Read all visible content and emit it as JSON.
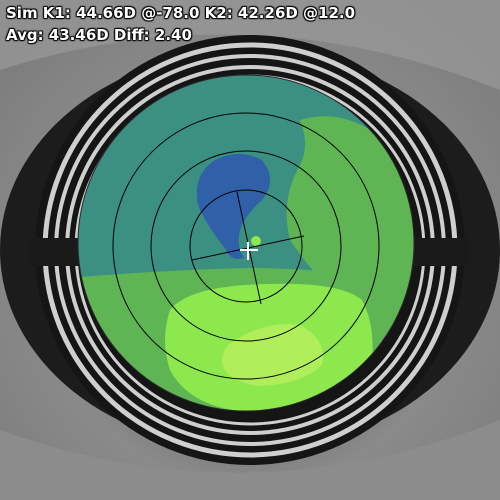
{
  "readout": {
    "line1": "Sim K1: 44.66D @-78.0 K2: 42.26D @12.0",
    "line2": "Avg: 43.46D Diff: 2.40"
  },
  "colors": {
    "map_outer": "#3c9082",
    "map_green": "#5fb553",
    "map_light_green": "#8de84d",
    "map_yellow_green": "#b1ee5b",
    "map_blue": "#2f60a8",
    "ring_line": "#000000",
    "marker": "#ffffff"
  }
}
